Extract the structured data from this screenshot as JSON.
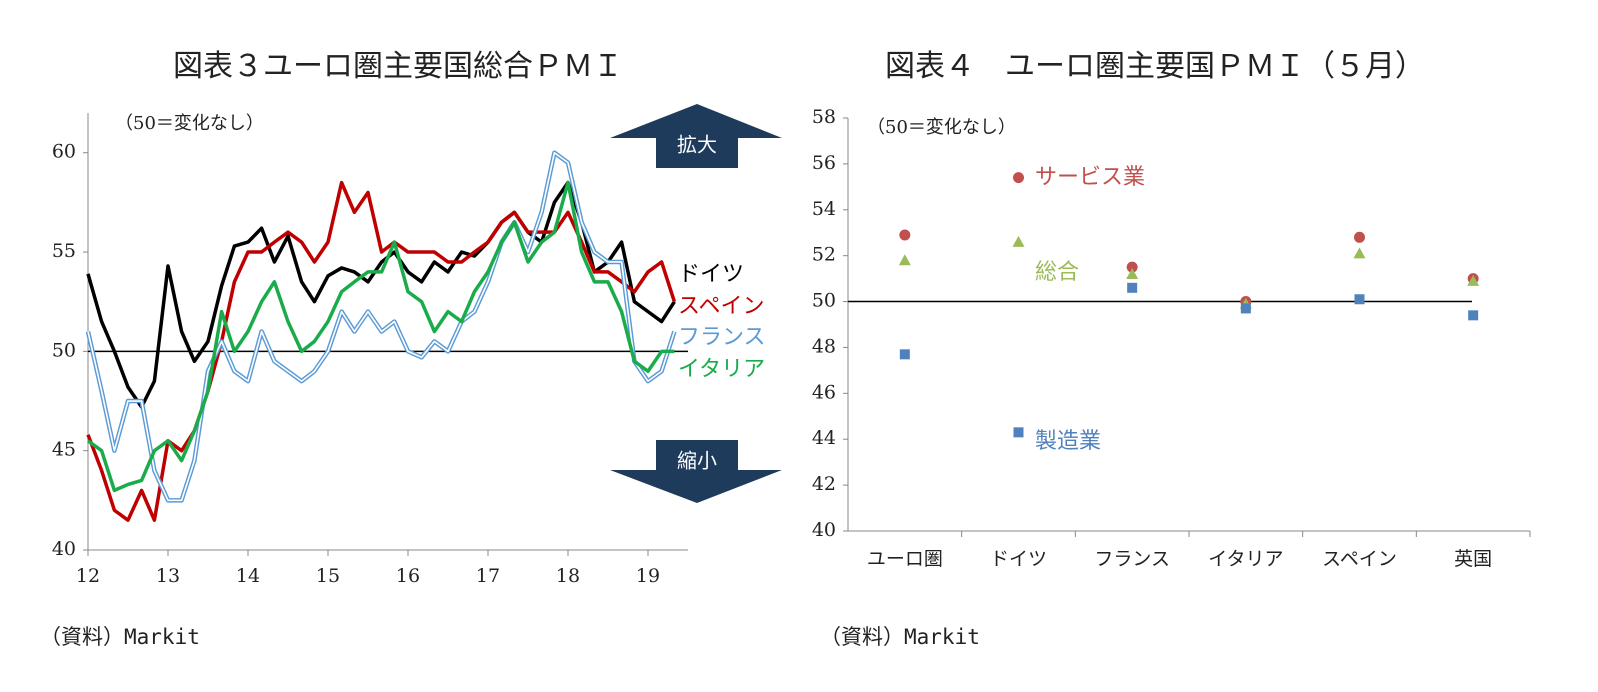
{
  "chart_data": [
    {
      "type": "line",
      "title": "図表３ユーロ圏主要国総合ＰＭＩ",
      "note": "（50＝変化なし）",
      "source": "（資料）Markit",
      "annotations": {
        "up": "拡大",
        "down": "縮小"
      },
      "reference_line": 50,
      "x": [
        12,
        12.17,
        12.33,
        12.5,
        12.67,
        12.83,
        13,
        13.17,
        13.33,
        13.5,
        13.67,
        13.83,
        14,
        14.17,
        14.33,
        14.5,
        14.67,
        14.83,
        15,
        15.17,
        15.33,
        15.5,
        15.67,
        15.83,
        16,
        16.17,
        16.33,
        16.5,
        16.67,
        16.83,
        17,
        17.17,
        17.33,
        17.5,
        17.67,
        17.83,
        18,
        18.17,
        18.33,
        18.5,
        18.67,
        18.83,
        19,
        19.17,
        19.33
      ],
      "xlim": [
        12,
        19.5
      ],
      "xticks": [
        12,
        13,
        14,
        15,
        16,
        17,
        18,
        19
      ],
      "ylim": [
        40,
        62
      ],
      "yticks": [
        40,
        45,
        50,
        55,
        60
      ],
      "series": [
        {
          "name": "ドイツ",
          "color": "#000000",
          "values": [
            53.9,
            51.5,
            50,
            48.2,
            47.2,
            48.5,
            54.3,
            51,
            49.5,
            50.5,
            53.3,
            55.3,
            55.5,
            56.2,
            54.5,
            55.8,
            53.5,
            52.5,
            53.8,
            54.2,
            54,
            53.5,
            54.5,
            55,
            54,
            53.5,
            54.5,
            54,
            55,
            54.8,
            55.5,
            56.5,
            57,
            56,
            55.5,
            57.5,
            58.5,
            56.5,
            54,
            54.5,
            55.5,
            52.5,
            52,
            51.5,
            52.5
          ]
        },
        {
          "name": "スペイン",
          "color": "#c00000",
          "values": [
            45.8,
            44,
            42,
            41.5,
            43,
            41.5,
            45.5,
            45,
            46,
            48,
            50.5,
            53.5,
            55,
            55,
            55.5,
            56,
            55.5,
            54.5,
            55.5,
            58.5,
            57,
            58,
            55,
            55.5,
            55,
            55,
            55,
            54.5,
            54.5,
            55,
            55.5,
            56.5,
            57,
            56,
            56,
            56,
            57,
            55.5,
            54,
            54,
            53.5,
            53,
            54,
            54.5,
            52.5
          ]
        },
        {
          "name": "フランス",
          "color": "#5b9bd5",
          "double": true,
          "values": [
            51,
            48,
            45,
            47.5,
            47.5,
            44,
            42.5,
            42.5,
            44.5,
            49,
            50.5,
            49,
            48.5,
            51,
            49.5,
            49,
            48.5,
            49,
            50,
            52,
            51,
            52,
            51,
            51.5,
            50,
            49.7,
            50.5,
            50,
            51.5,
            52,
            53.5,
            55.5,
            56.5,
            55,
            57,
            60,
            59.5,
            56.5,
            55,
            54.5,
            54.5,
            49.5,
            48.5,
            49,
            51
          ]
        },
        {
          "name": "イタリア",
          "color": "#1aab4a",
          "values": [
            45.5,
            45,
            43,
            43.3,
            43.5,
            45,
            45.5,
            44.5,
            46,
            48,
            52,
            50,
            51,
            52.5,
            53.5,
            51.5,
            50,
            50.5,
            51.5,
            53,
            53.5,
            54,
            54,
            55.5,
            53,
            52.5,
            51,
            52,
            51.5,
            53,
            54,
            55.5,
            56.5,
            54.5,
            55.5,
            56,
            58.5,
            55,
            53.5,
            53.5,
            52,
            49.5,
            49,
            50,
            50
          ]
        }
      ]
    },
    {
      "type": "scatter",
      "title": "図表４　ユーロ圏主要国ＰＭＩ（５月）",
      "note": "（50＝変化なし）",
      "source": "（資料）Markit",
      "reference_line": 50,
      "categories": [
        "ユーロ圏",
        "ドイツ",
        "フランス",
        "イタリア",
        "スペイン",
        "英国"
      ],
      "ylim": [
        40,
        58
      ],
      "yticks": [
        40,
        42,
        44,
        46,
        48,
        50,
        52,
        54,
        56,
        58
      ],
      "series": [
        {
          "name": "サービス業",
          "color": "#c0504d",
          "marker": "circle",
          "values": [
            52.9,
            55.4,
            51.5,
            50.0,
            52.8,
            51.0
          ]
        },
        {
          "name": "総合",
          "color": "#9bbb59",
          "marker": "triangle",
          "values": [
            51.8,
            52.6,
            51.2,
            49.9,
            52.1,
            50.9
          ]
        },
        {
          "name": "製造業",
          "color": "#4f81bd",
          "marker": "square",
          "values": [
            47.7,
            44.3,
            50.6,
            49.7,
            50.1,
            49.4
          ]
        }
      ]
    }
  ]
}
